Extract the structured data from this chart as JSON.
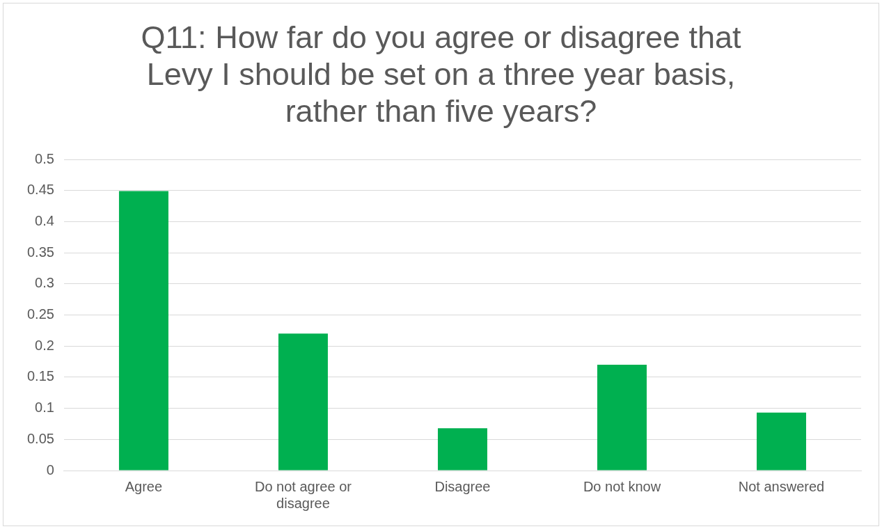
{
  "chart_data": {
    "type": "bar",
    "title": "Q11: How far do you agree or disagree that Levy I should be set on a three year basis, rather than five years?",
    "categories": [
      "Agree",
      "Do not agree or disagree",
      "Disagree",
      "Do not know",
      "Not answered"
    ],
    "values": [
      0.449,
      0.22,
      0.068,
      0.17,
      0.093
    ],
    "color": "#00b050",
    "ylim": [
      0,
      0.5
    ],
    "yticks": [
      0,
      0.05,
      0.1,
      0.15,
      0.2,
      0.25,
      0.3,
      0.35,
      0.4,
      0.45,
      0.5
    ],
    "grid": "y",
    "legend": false
  }
}
